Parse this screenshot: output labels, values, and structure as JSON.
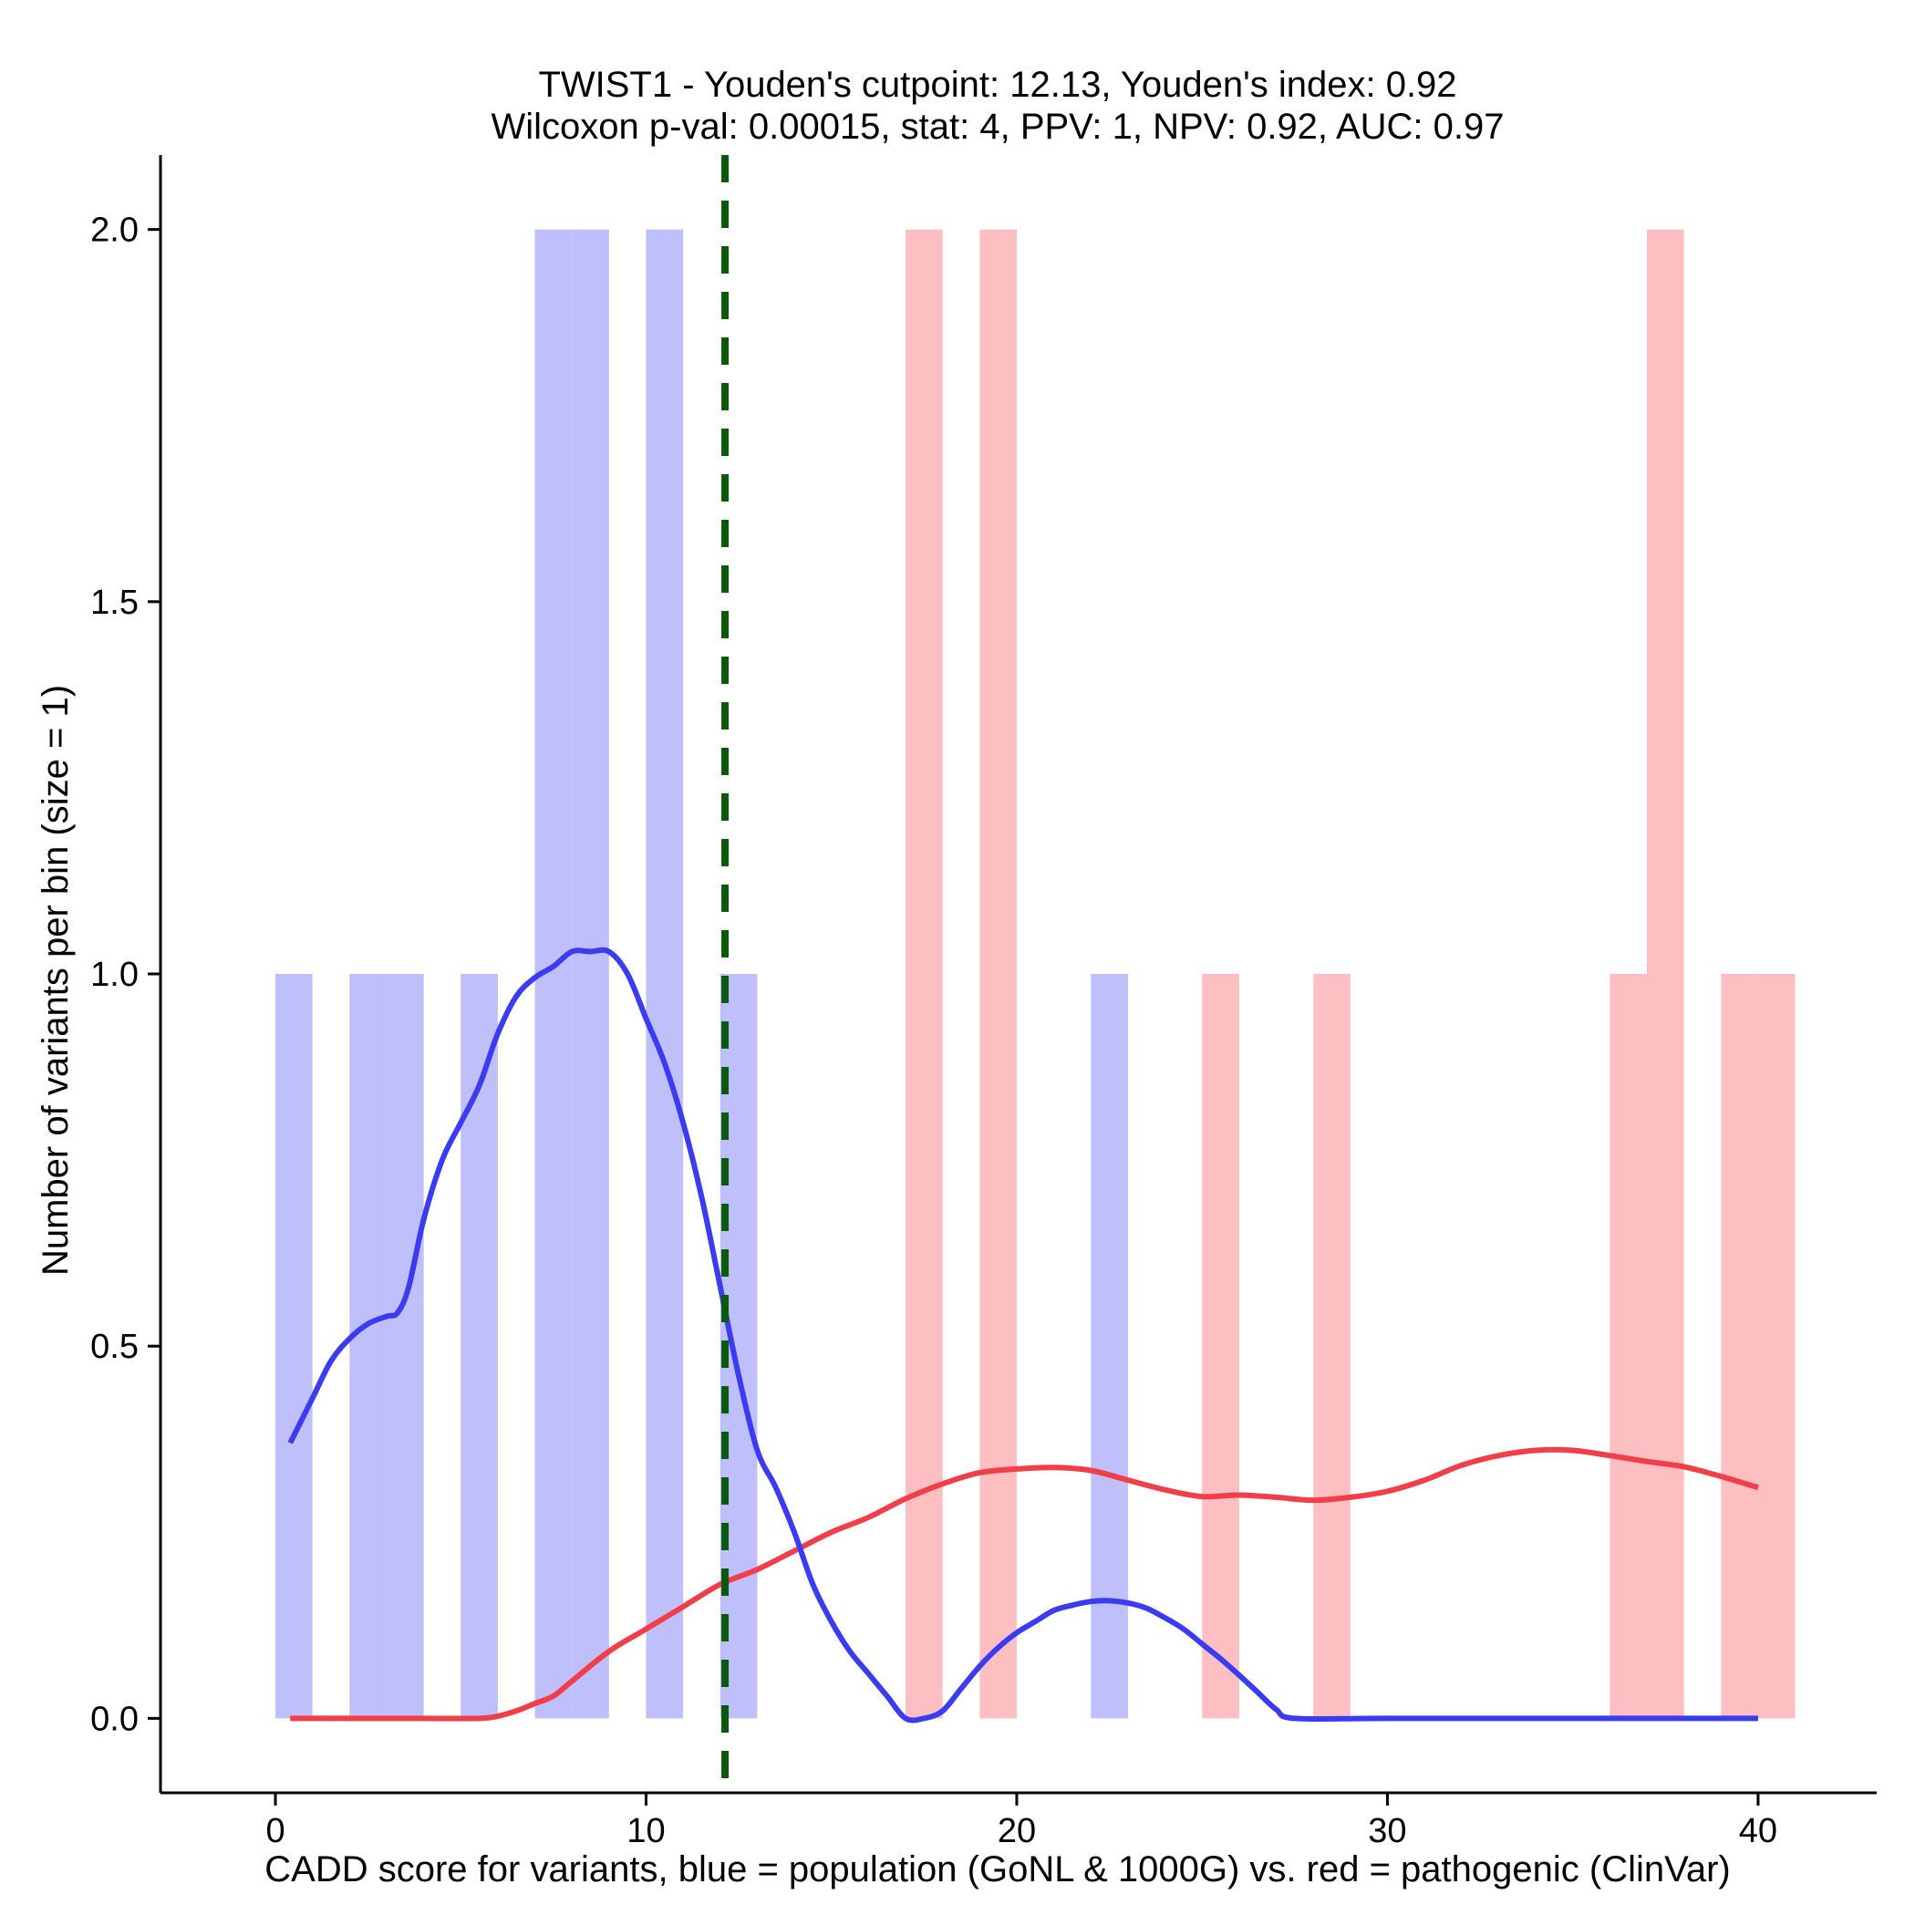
{
  "chart_data": {
    "type": "bar",
    "title_line1": "TWIST1 - Youden's cutpoint: 12.13, Youden's index: 0.92",
    "title_line2": "Wilcoxon p-val: 0.00015, stat: 4, PPV: 1, NPV: 0.92, AUC: 0.97",
    "xlabel": "CADD score for variants, blue = population (GoNL & 1000G) vs. red = pathogenic (ClinVar)",
    "ylabel": "Number of variants per bin (size = 1)",
    "xlim": [
      -3.1,
      43.2
    ],
    "ylim": [
      -0.1,
      2.1
    ],
    "x_ticks": [
      0,
      10,
      20,
      30,
      40
    ],
    "x_tick_labels": [
      "0",
      "10",
      "20",
      "30",
      "40"
    ],
    "y_ticks": [
      0,
      0.5,
      1,
      1.5,
      2
    ],
    "y_tick_labels": [
      "0.0",
      "0.5",
      "1.0",
      "1.5",
      "2.0"
    ],
    "bin_width": 1,
    "colors": {
      "population_bar": "#bfbffb",
      "pathogenic_bar": "#fdbfc1",
      "population_line": "#3b3bf2",
      "pathogenic_line": "#f23e48",
      "cutpoint_line": "#0b5a0b"
    },
    "cutpoint": 12.13,
    "series": [
      {
        "name": "population",
        "bins": [
          {
            "start": 0,
            "count": 1
          },
          {
            "start": 2,
            "count": 1
          },
          {
            "start": 3,
            "count": 1
          },
          {
            "start": 5,
            "count": 1
          },
          {
            "start": 7,
            "count": 2
          },
          {
            "start": 8,
            "count": 2
          },
          {
            "start": 10,
            "count": 2
          },
          {
            "start": 12,
            "count": 1
          },
          {
            "start": 22,
            "count": 1
          }
        ]
      },
      {
        "name": "pathogenic",
        "bins": [
          {
            "start": 17,
            "count": 2
          },
          {
            "start": 19,
            "count": 2
          },
          {
            "start": 25,
            "count": 1
          },
          {
            "start": 28,
            "count": 1
          },
          {
            "start": 36,
            "count": 1
          },
          {
            "start": 37,
            "count": 2
          },
          {
            "start": 39,
            "count": 1
          },
          {
            "start": 40,
            "count": 1
          }
        ]
      }
    ],
    "density_lines": [
      {
        "name": "population",
        "x": [
          0.4,
          1,
          1.5,
          2,
          2.5,
          3,
          3.3,
          3.6,
          4,
          4.5,
          5,
          5.5,
          6,
          6.5,
          7,
          7.5,
          8,
          8.5,
          9,
          9.5,
          10,
          10.5,
          11,
          11.5,
          12,
          12.5,
          13,
          13.5,
          14,
          14.5,
          15,
          15.5,
          16,
          16.5,
          17,
          17.5,
          18,
          18.5,
          19,
          19.5,
          20,
          20.5,
          21,
          21.5,
          22,
          22.5,
          23,
          23.5,
          24,
          24.5,
          25,
          25.5,
          26,
          26.5,
          27,
          27.5,
          30,
          35,
          40
        ],
        "y": [
          0.37,
          0.43,
          0.48,
          0.51,
          0.53,
          0.54,
          0.545,
          0.58,
          0.67,
          0.75,
          0.8,
          0.85,
          0.92,
          0.97,
          0.995,
          1.01,
          1.03,
          1.03,
          1.03,
          1.0,
          0.94,
          0.88,
          0.8,
          0.7,
          0.58,
          0.46,
          0.36,
          0.31,
          0.25,
          0.18,
          0.13,
          0.09,
          0.06,
          0.03,
          0.0,
          0.0,
          0.01,
          0.04,
          0.07,
          0.095,
          0.115,
          0.13,
          0.145,
          0.152,
          0.157,
          0.158,
          0.155,
          0.148,
          0.135,
          0.12,
          0.1,
          0.08,
          0.058,
          0.035,
          0.012,
          0.0,
          0.0,
          0.0,
          0.0
        ]
      },
      {
        "name": "pathogenic",
        "x": [
          0.4,
          2,
          4,
          5.5,
          6,
          6.5,
          7,
          7.5,
          8,
          9,
          10,
          11,
          12,
          13,
          14,
          15,
          16,
          17,
          18,
          19,
          20,
          21,
          22,
          23,
          24,
          25,
          26,
          27,
          28,
          29,
          30,
          31,
          32,
          33,
          34,
          35,
          36,
          37,
          38,
          39,
          40
        ],
        "y": [
          0.0,
          0.0,
          0.0,
          0.0,
          0.003,
          0.01,
          0.02,
          0.03,
          0.05,
          0.09,
          0.12,
          0.15,
          0.18,
          0.2,
          0.225,
          0.25,
          0.27,
          0.295,
          0.315,
          0.33,
          0.335,
          0.337,
          0.333,
          0.32,
          0.307,
          0.298,
          0.3,
          0.297,
          0.293,
          0.297,
          0.305,
          0.32,
          0.34,
          0.353,
          0.36,
          0.36,
          0.353,
          0.345,
          0.338,
          0.325,
          0.31
        ]
      }
    ]
  }
}
